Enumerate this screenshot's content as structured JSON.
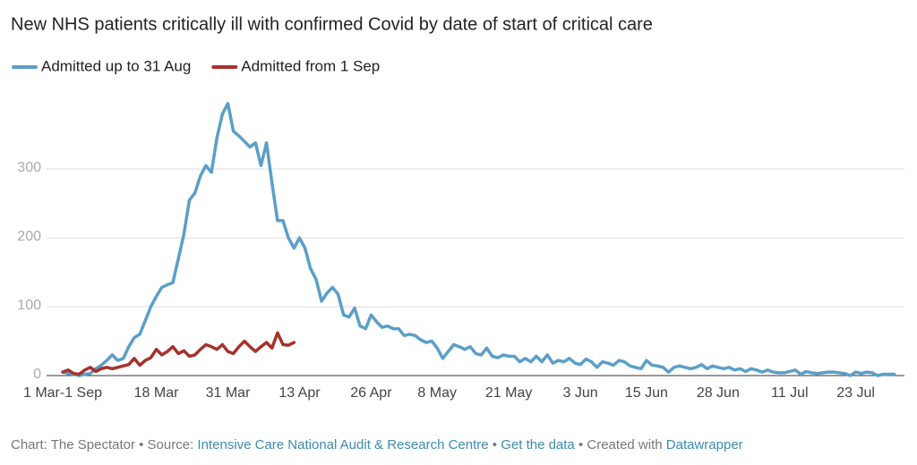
{
  "chart_data": {
    "type": "line",
    "title": "New NHS patients critically ill with confirmed Covid by date of start of critical care",
    "categories": [
      "1 Mar-1 Sep",
      null,
      null,
      null,
      null,
      null,
      null,
      null,
      null,
      null,
      null,
      null,
      null,
      null,
      null,
      null,
      null,
      "18 Mar",
      null,
      null,
      null,
      null,
      null,
      null,
      null,
      null,
      null,
      null,
      null,
      null,
      "31 Mar",
      null,
      null,
      null,
      null,
      null,
      null,
      null,
      null,
      null,
      null,
      null,
      null,
      "13 Apr",
      null,
      null,
      null,
      null,
      null,
      null,
      null,
      null,
      null,
      null,
      null,
      null,
      "26 Apr",
      null,
      null,
      null,
      null,
      null,
      null,
      null,
      null,
      null,
      null,
      null,
      "8 May",
      null,
      null,
      null,
      null,
      null,
      null,
      null,
      null,
      null,
      null,
      null,
      null,
      "21 May",
      null,
      null,
      null,
      null,
      null,
      null,
      null,
      null,
      null,
      null,
      null,
      null,
      "3 Jun",
      null,
      null,
      null,
      null,
      null,
      null,
      null,
      null,
      null,
      null,
      null,
      "15 Jun",
      null,
      null,
      null,
      null,
      null,
      null,
      null,
      null,
      null,
      null,
      null,
      null,
      "28 Jun",
      null,
      null,
      null,
      null,
      null,
      null,
      null,
      null,
      null,
      null,
      null,
      null,
      "11 Jul",
      null,
      null,
      null,
      null,
      null,
      null,
      null,
      null,
      null,
      null,
      null,
      "23 Jul",
      null,
      null,
      null,
      null,
      null,
      null,
      null
    ],
    "series": [
      {
        "name": "Admitted up to 31 Aug",
        "color": "#5b9fc8",
        "values": [
          5,
          3,
          2,
          0,
          2,
          3,
          10,
          15,
          22,
          30,
          22,
          25,
          42,
          55,
          60,
          80,
          100,
          115,
          128,
          132,
          135,
          170,
          205,
          255,
          265,
          290,
          305,
          295,
          345,
          380,
          395,
          355,
          348,
          340,
          332,
          338,
          305,
          338,
          280,
          225,
          225,
          200,
          185,
          200,
          185,
          155,
          140,
          108,
          120,
          128,
          118,
          88,
          85,
          98,
          72,
          68,
          88,
          78,
          70,
          72,
          68,
          68,
          58,
          60,
          58,
          52,
          48,
          50,
          40,
          25,
          35,
          45,
          42,
          38,
          42,
          32,
          30,
          40,
          28,
          26,
          30,
          28,
          28,
          20,
          25,
          20,
          28,
          20,
          30,
          18,
          22,
          20,
          25,
          18,
          16,
          24,
          20,
          12,
          20,
          18,
          15,
          22,
          20,
          14,
          12,
          10,
          22,
          15,
          14,
          12,
          5,
          12,
          14,
          12,
          10,
          12,
          16,
          10,
          14,
          12,
          10,
          12,
          8,
          10,
          6,
          10,
          8,
          5,
          8,
          5,
          4,
          4,
          6,
          8,
          2,
          6,
          4,
          3,
          4,
          5,
          5,
          4,
          3,
          0,
          5,
          3,
          5,
          4,
          0,
          2,
          2,
          2
        ]
      },
      {
        "name": "Admitted from 1 Sep",
        "color": "#a6322c",
        "values": [
          5,
          8,
          3,
          2,
          8,
          12,
          6,
          10,
          12,
          10,
          12,
          14,
          16,
          25,
          15,
          22,
          26,
          38,
          30,
          35,
          42,
          32,
          36,
          28,
          30,
          38,
          45,
          42,
          38,
          45,
          35,
          32,
          42,
          50,
          42,
          35,
          42,
          48,
          40,
          62,
          45,
          44,
          48,
          null,
          null,
          null,
          null,
          null,
          null,
          null,
          null,
          null,
          null,
          null,
          null,
          null,
          null,
          null,
          null,
          null,
          null,
          null,
          null,
          null,
          null,
          null,
          null,
          null,
          null,
          null,
          null,
          null,
          null,
          null,
          null,
          null,
          null,
          null,
          null,
          null,
          null,
          null,
          null,
          null,
          null,
          null,
          null,
          null,
          null,
          null,
          null,
          null,
          null,
          null,
          null,
          null,
          null,
          null,
          null,
          null,
          null,
          null,
          null,
          null,
          null,
          null,
          null,
          null,
          null,
          null,
          null,
          null,
          null,
          null,
          null,
          null,
          null,
          null,
          null,
          null,
          null,
          null,
          null,
          null,
          null,
          null,
          null,
          null,
          null,
          null,
          null,
          null,
          null,
          null,
          null,
          null,
          null,
          null,
          null,
          null,
          null,
          null,
          null,
          null,
          null,
          null,
          null,
          null,
          null,
          null,
          null,
          null
        ]
      }
    ],
    "ylim": [
      0,
      400
    ],
    "yticks": [
      0,
      100,
      200,
      300
    ],
    "grid": true,
    "footer": {
      "prefix": "Chart: The Spectator • Source:",
      "source": "Intensive Care National Audit & Research Centre",
      "separator": "•",
      "data_link": "Get the data",
      "credit": "Created with",
      "tool": "Datawrapper"
    }
  }
}
